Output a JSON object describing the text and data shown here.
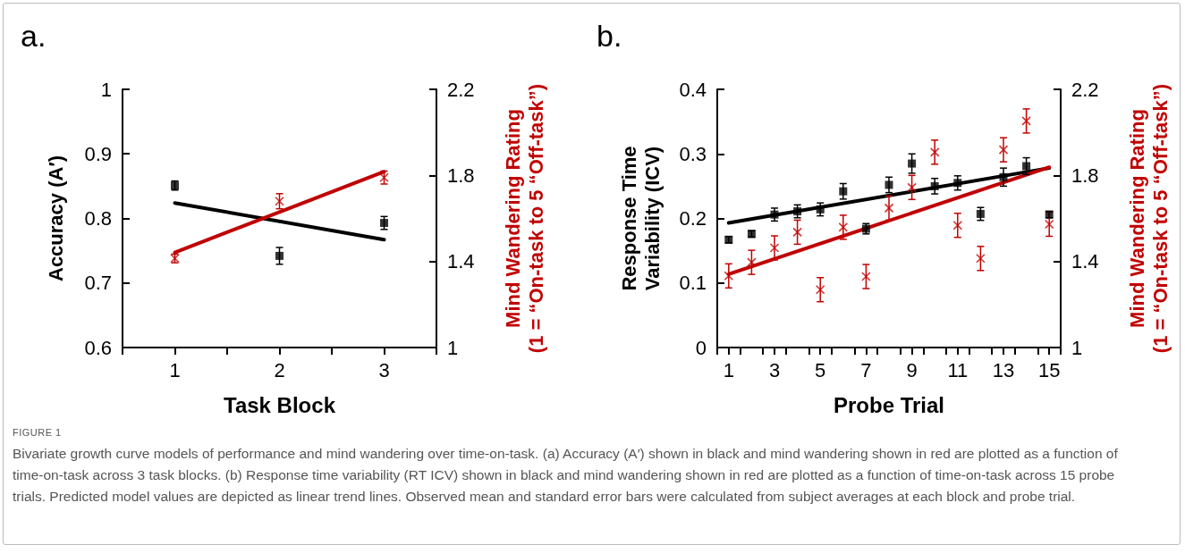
{
  "chart_data": [
    {
      "type": "scatter",
      "title": "a.",
      "xlabel": "Task Block",
      "ylabel": "Accuracy (A′)",
      "y2label": "Mind Wandering Rating\n(1 = “On-task to 5 “Off-task”)",
      "xlim": [
        0.5,
        3.5
      ],
      "xticks": [
        {
          "value": 0.5,
          "label": null
        },
        1,
        {
          "value": 1.5,
          "label": null
        },
        2,
        {
          "value": 2.5,
          "label": null
        },
        3,
        {
          "value": 3.5,
          "label": null
        }
      ],
      "ylim": [
        0.6,
        1
      ],
      "yticks": [
        0.6,
        0.7,
        0.8,
        0.9,
        1
      ],
      "y2lim": [
        1,
        2.2
      ],
      "y2ticks": [
        1,
        1.4,
        1.8,
        2.2
      ],
      "grid": false,
      "series": [
        {
          "color": "#000000",
          "marker": "square",
          "x": [
            1,
            2,
            3
          ],
          "values": [
            0.851,
            0.742,
            0.793
          ],
          "errors": [
            0.007,
            0.013,
            0.01
          ]
        },
        {
          "type": "line",
          "color": "#000000",
          "marker": "none",
          "x": [
            1,
            3
          ],
          "values": [
            0.824,
            0.767
          ]
        },
        {
          "color": "#c00000",
          "marker": "cross",
          "axis": "y2",
          "x": [
            1,
            2,
            3
          ],
          "values": [
            1.414,
            1.68,
            1.79
          ],
          "errors": [
            0.02,
            0.035,
            0.03
          ]
        },
        {
          "type": "line",
          "color": "#c00000",
          "marker": "none",
          "axis": "y2",
          "x": [
            1,
            3
          ],
          "values": [
            1.442,
            1.817
          ]
        }
      ],
      "annotations": [
        "FIGURE 1",
        "Bivariate growth curve models of performance and mind wandering over time-on-task. (a) Accuracy (A′) shown in black and mind wandering shown in red are plotted as a function of time-on-task across 3 task blocks. (b) Response time variability (RT ICV) shown in black and mind wandering shown in red are plotted as a function of time-on-task across 15 probe trials. Predicted model values are depicted as linear trend lines. Observed mean and standard error bars were calculated from subject averages at each block and probe trial."
      ]
    },
    {
      "type": "scatter",
      "title": "b.",
      "xlabel": "Probe Trial",
      "ylabel": "Response Time\nVariability (ICV)",
      "y2label": "Mind Wandering Rating\n(1 = “On-task to 5 “Off-task”)",
      "xlim": [
        0.5,
        15.5
      ],
      "xticks": [
        {
          "value": 0.5,
          "label": null
        },
        1,
        {
          "value": 1.5,
          "label": null
        },
        {
          "value": 2.5,
          "label": null
        },
        3,
        {
          "value": 3.5,
          "label": null
        },
        {
          "value": 4.5,
          "label": null
        },
        5,
        {
          "value": 5.5,
          "label": null
        },
        {
          "value": 6.5,
          "label": null
        },
        7,
        {
          "value": 7.5,
          "label": null
        },
        {
          "value": 8.5,
          "label": null
        },
        9,
        {
          "value": 9.5,
          "label": null
        },
        {
          "value": 10.5,
          "label": null
        },
        11,
        {
          "value": 11.5,
          "label": null
        },
        {
          "value": 12.5,
          "label": null
        },
        13,
        {
          "value": 13.5,
          "label": null
        },
        {
          "value": 14.5,
          "label": null
        },
        15,
        {
          "value": 15.5,
          "label": null
        }
      ],
      "ylim": [
        0,
        0.4
      ],
      "yticks": [
        0,
        0.1,
        0.2,
        0.3,
        0.4
      ],
      "y2lim": [
        1,
        2.2
      ],
      "y2ticks": [
        1,
        1.4,
        1.8,
        2.2
      ],
      "grid": false,
      "series": [
        {
          "color": "#000000",
          "marker": "square",
          "x": [
            1,
            2,
            3,
            4,
            5,
            6,
            7,
            8,
            9,
            10,
            11,
            12,
            13,
            14,
            15
          ],
          "values": [
            0.167,
            0.176,
            0.206,
            0.211,
            0.214,
            0.242,
            0.184,
            0.252,
            0.285,
            0.25,
            0.255,
            0.207,
            0.264,
            0.281,
            0.206
          ],
          "errors": [
            0.005,
            0.005,
            0.01,
            0.01,
            0.01,
            0.012,
            0.008,
            0.012,
            0.015,
            0.012,
            0.011,
            0.01,
            0.014,
            0.013,
            0.005
          ]
        },
        {
          "type": "line",
          "color": "#000000",
          "marker": "none",
          "x": [
            1,
            15
          ],
          "values": [
            0.193,
            0.278
          ]
        },
        {
          "color": "#c00000",
          "marker": "cross",
          "axis": "y2",
          "x": [
            1,
            2,
            3,
            4,
            5,
            6,
            7,
            8,
            9,
            10,
            11,
            12,
            13,
            14,
            15
          ],
          "values": [
            1.333,
            1.396,
            1.463,
            1.536,
            1.269,
            1.559,
            1.33,
            1.648,
            1.744,
            1.908,
            1.568,
            1.414,
            1.919,
            2.053,
            1.573
          ],
          "errors": [
            0.056,
            0.056,
            0.056,
            0.056,
            0.056,
            0.056,
            0.056,
            0.056,
            0.056,
            0.056,
            0.056,
            0.056,
            0.056,
            0.056,
            0.056
          ]
        },
        {
          "type": "line",
          "color": "#c00000",
          "marker": "none",
          "axis": "y2",
          "x": [
            1,
            15
          ],
          "values": [
            1.341,
            1.838
          ]
        }
      ]
    }
  ]
}
